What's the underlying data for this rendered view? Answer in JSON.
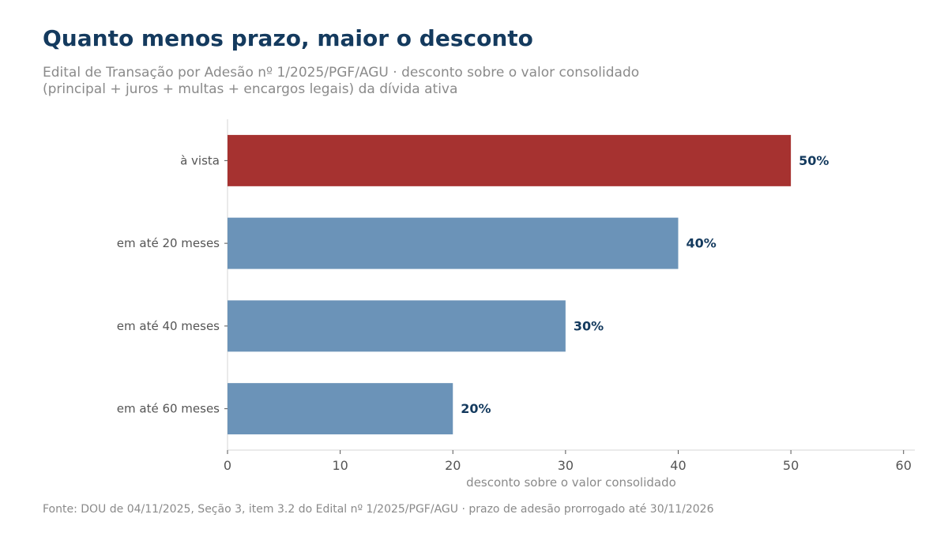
{
  "title": "Quanto menos prazo, maior o desconto",
  "subtitle": [
    "Edital de Transação por Adesão nº 1/2025/PGF/AGU · desconto sobre o valor consolidado",
    "(principal + juros + multas + encargos legais) da dívida ativa"
  ],
  "source": "Fonte: DOU de 04/11/2025, Seção 3, item 3.2 do Edital nº 1/2025/PGF/AGU · prazo de adesão prorrogado até 30/11/2026",
  "colors": {
    "highlight": "#a63230",
    "bar": "#6b93b8",
    "value_label": "#143a5e",
    "title": "#143a5e",
    "muted_text": "#8a8a8a",
    "category_text": "#555555",
    "axis_line": "#d6d6d6"
  },
  "chart_data": {
    "type": "bar",
    "orientation": "horizontal",
    "categories": [
      "à vista",
      "em até 20 meses",
      "em até 40 meses",
      "em até 60 meses"
    ],
    "values": [
      50,
      40,
      30,
      20
    ],
    "value_labels": [
      "50%",
      "40%",
      "30%",
      "20%"
    ],
    "highlighted": [
      true,
      false,
      false,
      false
    ],
    "xlabel": "desconto sobre o valor consolidado",
    "ylabel": "",
    "xlim": [
      0,
      61
    ],
    "xticks": [
      0,
      10,
      20,
      30,
      40,
      50,
      60
    ],
    "xtick_labels": [
      "0",
      "10",
      "20",
      "30",
      "40",
      "50",
      "60"
    ],
    "grid": false,
    "legend": "none"
  }
}
